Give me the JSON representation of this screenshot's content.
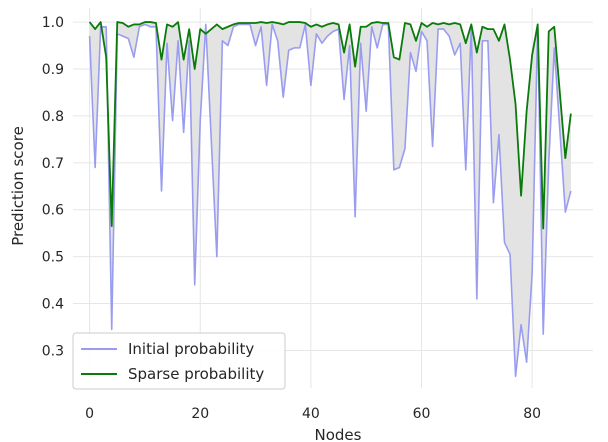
{
  "chart_data": {
    "type": "line",
    "title": "",
    "xlabel": "Nodes",
    "ylabel": "Prediction score",
    "xlim": [
      -3,
      91
    ],
    "ylim": [
      0.22,
      1.03
    ],
    "x_ticks": [
      0,
      20,
      40,
      60,
      80
    ],
    "y_ticks": [
      0.3,
      0.4,
      0.5,
      0.6,
      0.7,
      0.8,
      0.9,
      1.0
    ],
    "x_tick_labels": [
      "0",
      "20",
      "40",
      "60",
      "80"
    ],
    "y_tick_labels": [
      "0.3",
      "0.4",
      "0.5",
      "0.6",
      "0.7",
      "0.8",
      "0.9",
      "1.0"
    ],
    "grid": true,
    "legend_position": "bottom-left",
    "fill_between": true,
    "fill_color": "#e3e3e3",
    "series": [
      {
        "name": "Initial probability",
        "color": "#9a9cf0",
        "values": [
          0.97,
          0.69,
          0.99,
          0.99,
          0.345,
          0.975,
          0.97,
          0.965,
          0.925,
          0.99,
          0.995,
          0.99,
          0.99,
          0.64,
          0.955,
          0.79,
          0.96,
          0.765,
          0.96,
          0.44,
          0.79,
          0.995,
          0.5,
          0.96,
          0.95,
          0.99,
          0.995,
          0.995,
          0.995,
          0.95,
          0.99,
          0.865,
          0.995,
          0.96,
          0.84,
          0.94,
          0.945,
          0.945,
          0.995,
          0.865,
          0.975,
          0.955,
          0.97,
          0.98,
          0.985,
          0.835,
          0.95,
          0.585,
          0.955,
          0.81,
          0.99,
          0.945,
          0.995,
          0.995,
          0.685,
          0.69,
          0.73,
          0.935,
          0.895,
          0.98,
          0.96,
          0.735,
          0.985,
          0.985,
          0.97,
          0.93,
          0.955,
          0.685,
          0.99,
          0.41,
          0.96,
          0.96,
          0.615,
          0.76,
          0.53,
          0.505,
          0.245,
          0.355,
          0.275,
          0.465,
          0.995,
          0.335,
          0.7,
          0.945,
          0.595,
          0.64
        ],
        "x": [
          0,
          1,
          2,
          3,
          4,
          5,
          6,
          7,
          8,
          9,
          10,
          11,
          12,
          13,
          14,
          15,
          16,
          17,
          18,
          19,
          20,
          21,
          23,
          24,
          25,
          26,
          27,
          28,
          29,
          30,
          31,
          32,
          33,
          34,
          35,
          36,
          37,
          38,
          39,
          40,
          41,
          42,
          43,
          44,
          45,
          46,
          47,
          48,
          49,
          50,
          51,
          52,
          53,
          54,
          55,
          56,
          57,
          58,
          59,
          60,
          61,
          62,
          63,
          64,
          65,
          66,
          67,
          68,
          69,
          70,
          71,
          72,
          73,
          74,
          75,
          76,
          77,
          78,
          79,
          80,
          81,
          82,
          83,
          84,
          86,
          87
        ]
      },
      {
        "name": "Sparse probability",
        "color": "#0a7a0a",
        "values": [
          1.0,
          0.985,
          1.0,
          0.925,
          0.565,
          1.0,
          0.998,
          0.99,
          0.995,
          0.995,
          1.0,
          1.0,
          0.998,
          0.92,
          0.995,
          0.99,
          1.0,
          0.92,
          0.985,
          0.9,
          0.985,
          0.975,
          0.995,
          0.985,
          0.99,
          0.995,
          0.998,
          0.998,
          0.998,
          0.998,
          1.0,
          0.998,
          1.0,
          0.998,
          0.995,
          1.0,
          1.0,
          1.0,
          0.998,
          0.99,
          0.995,
          0.99,
          0.995,
          0.998,
          0.995,
          0.935,
          0.995,
          0.905,
          0.99,
          0.99,
          0.998,
          1.0,
          0.998,
          0.998,
          0.925,
          0.92,
          0.998,
          0.995,
          0.96,
          0.998,
          0.99,
          0.998,
          0.995,
          0.998,
          0.995,
          0.998,
          0.995,
          0.955,
          0.995,
          0.935,
          0.99,
          0.985,
          0.985,
          0.96,
          0.995,
          0.92,
          0.825,
          0.63,
          0.81,
          0.93,
          0.995,
          0.56,
          0.98,
          0.99,
          0.71,
          0.805
        ],
        "x": [
          0,
          1,
          2,
          3,
          4,
          5,
          6,
          7,
          8,
          9,
          10,
          11,
          12,
          13,
          14,
          15,
          16,
          17,
          18,
          19,
          20,
          21,
          23,
          24,
          25,
          26,
          27,
          28,
          29,
          30,
          31,
          32,
          33,
          34,
          35,
          36,
          37,
          38,
          39,
          40,
          41,
          42,
          43,
          44,
          45,
          46,
          47,
          48,
          49,
          50,
          51,
          52,
          53,
          54,
          55,
          56,
          57,
          58,
          59,
          60,
          61,
          62,
          63,
          64,
          65,
          66,
          67,
          68,
          69,
          70,
          71,
          72,
          73,
          74,
          75,
          76,
          77,
          78,
          79,
          80,
          81,
          82,
          83,
          84,
          86,
          87
        ]
      }
    ]
  }
}
